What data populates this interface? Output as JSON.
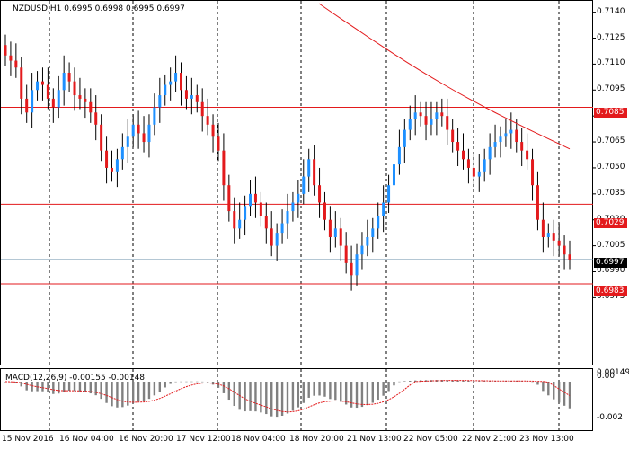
{
  "chart": {
    "title_symbol": "NZDUSD,H1",
    "title_values": "0.6995 0.6998 0.6995 0.6997",
    "macd_title": "MACD(12,26,9)",
    "macd_values": "-0.00155 -0.00148",
    "price_ticks": [
      "0.7140",
      "0.7125",
      "0.7110",
      "0.7095",
      "0.7080",
      "0.7065",
      "0.7050",
      "0.7035",
      "0.7020",
      "0.7005",
      "0.6990",
      "0.6975"
    ],
    "macd_ticks": [
      "0.00149",
      "0.00",
      "-0.002"
    ],
    "time_labels": [
      "15 Nov 2016",
      "16 Nov 04:00",
      "16 Nov 20:00",
      "17 Nov 12:00",
      "18 Nov 04:00",
      "18 Nov 20:00",
      "21 Nov 13:00",
      "22 Nov 05:00",
      "22 Nov 21:00",
      "23 Nov 13:00"
    ],
    "level_labels": {
      "l1": "0.7085",
      "l2": "0.7029",
      "current": "0.6997",
      "l3": "0.6983"
    },
    "colors": {
      "bull": "#1e90ff",
      "bear": "#e31a1c",
      "level": "#e31a1c",
      "current": "#6a8fa8",
      "macd_bar": "#808080",
      "signal": "#e31a1c"
    }
  },
  "chart_data": {
    "type": "candlestick",
    "symbol": "NZDUSD",
    "timeframe": "H1",
    "y_range": [
      0.697,
      0.7145
    ],
    "levels": [
      0.7085,
      0.7029,
      0.6983
    ],
    "current_price": 0.6997,
    "x_labels": [
      "15 Nov 2016",
      "16 Nov 04:00",
      "16 Nov 20:00",
      "17 Nov 12:00",
      "18 Nov 04:00",
      "18 Nov 20:00",
      "21 Nov 13:00",
      "22 Nov 05:00",
      "22 Nov 21:00",
      "23 Nov 13:00"
    ],
    "close_series": [
      0.7115,
      0.7112,
      0.7108,
      0.709,
      0.7082,
      0.7095,
      0.71,
      0.7098,
      0.709,
      0.7085,
      0.7095,
      0.7105,
      0.71,
      0.7092,
      0.709,
      0.7088,
      0.7082,
      0.7075,
      0.706,
      0.705,
      0.7048,
      0.7055,
      0.7062,
      0.7068,
      0.7075,
      0.707,
      0.7065,
      0.7075,
      0.7085,
      0.7092,
      0.7098,
      0.71,
      0.7105,
      0.7095,
      0.709,
      0.7092,
      0.7088,
      0.708,
      0.7075,
      0.7068,
      0.706,
      0.704,
      0.7025,
      0.7015,
      0.702,
      0.7028,
      0.7035,
      0.703,
      0.7022,
      0.7015,
      0.7005,
      0.7012,
      0.7018,
      0.7025,
      0.703,
      0.7035,
      0.7045,
      0.7055,
      0.704,
      0.703,
      0.702,
      0.701,
      0.7015,
      0.7005,
      0.6995,
      0.6988,
      0.7,
      0.7005,
      0.701,
      0.7015,
      0.7022,
      0.703,
      0.704,
      0.7052,
      0.7062,
      0.7072,
      0.7078,
      0.7082,
      0.708,
      0.7075,
      0.7078,
      0.7082,
      0.708,
      0.7072,
      0.7065,
      0.706,
      0.7055,
      0.705,
      0.7045,
      0.7048,
      0.7055,
      0.7062,
      0.7065,
      0.7068,
      0.707,
      0.7072,
      0.7065,
      0.706,
      0.7055,
      0.704,
      0.702,
      0.701,
      0.7012,
      0.7008,
      0.7005,
      0.7,
      0.6997
    ],
    "macd": {
      "values_start": 0.0003,
      "range": [
        -0.002,
        0.00149
      ]
    }
  }
}
